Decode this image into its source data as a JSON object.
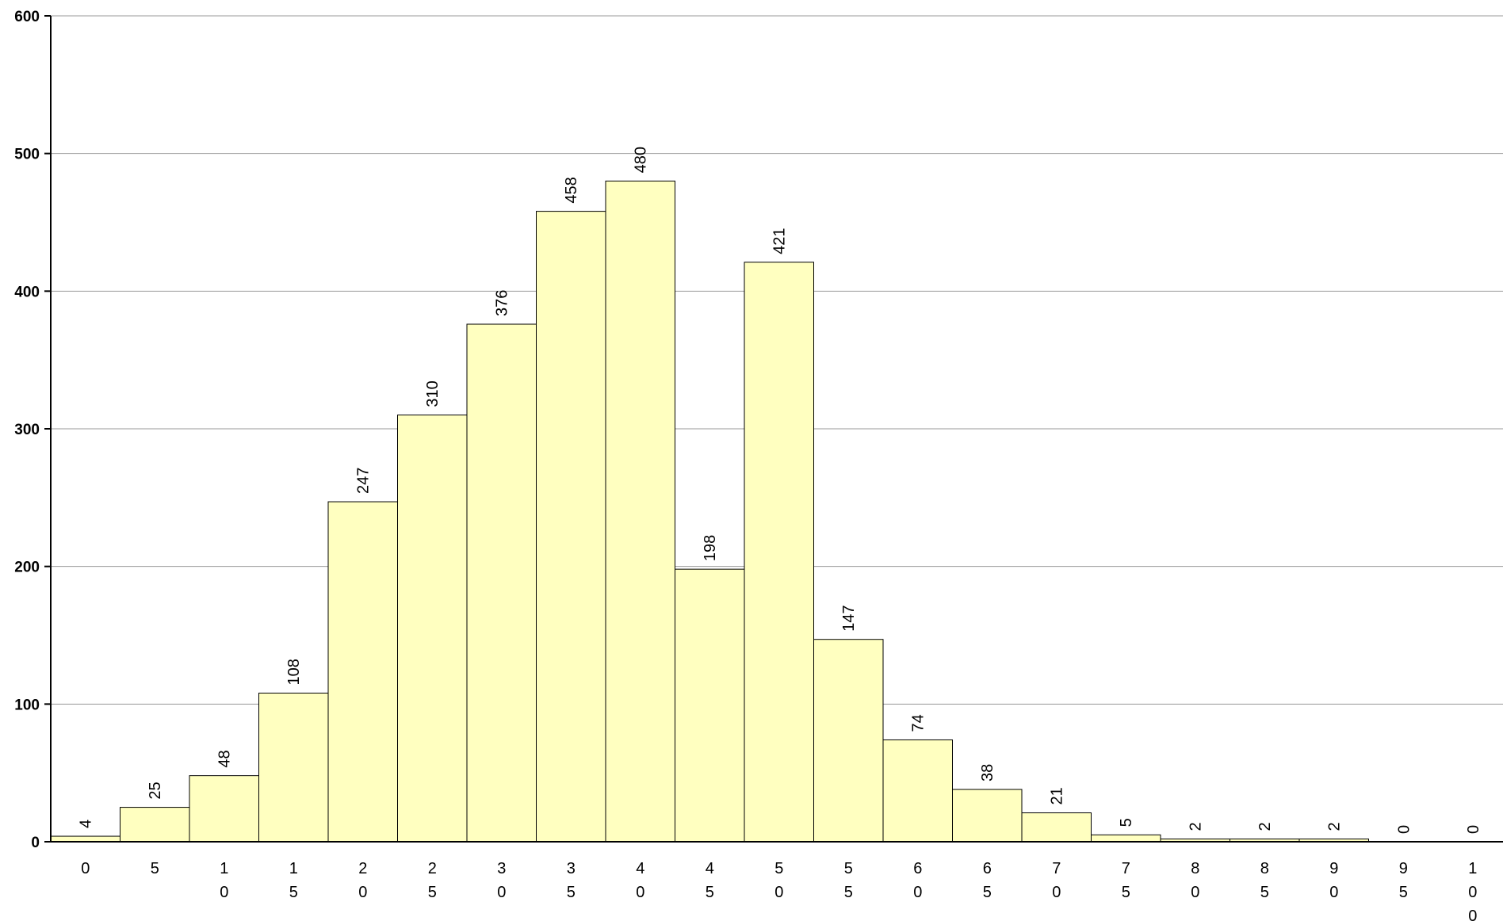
{
  "chart_data": {
    "type": "bar",
    "categories": [
      "0",
      "5",
      "10",
      "15",
      "20",
      "25",
      "30",
      "35",
      "40",
      "45",
      "50",
      "55",
      "60",
      "65",
      "70",
      "75",
      "80",
      "85",
      "90",
      "95",
      "100"
    ],
    "values": [
      4,
      25,
      48,
      108,
      247,
      310,
      376,
      458,
      480,
      198,
      421,
      147,
      74,
      38,
      21,
      5,
      2,
      2,
      2,
      0,
      0
    ],
    "data_labels": [
      "4",
      "25",
      "48",
      "108",
      "247",
      "310",
      "376",
      "458",
      "480",
      "198",
      "421",
      "147",
      "74",
      "38",
      "21",
      "5",
      "2",
      "2",
      "2",
      "0",
      "0"
    ],
    "y_ticks": [
      "0",
      "100",
      "200",
      "300",
      "400",
      "500",
      "600"
    ],
    "title": "",
    "xlabel": "",
    "ylabel": "",
    "ylim": [
      0,
      600
    ],
    "grid": true,
    "legend": "none",
    "bar_color": "#ffffc0",
    "bar_edge_color": "#000000",
    "grid_color": "#9a9a9a"
  }
}
